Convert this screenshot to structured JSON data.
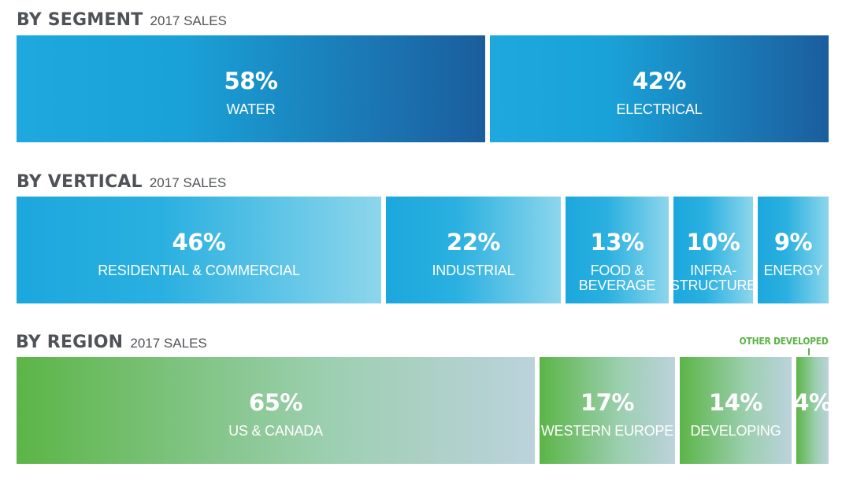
{
  "chart_data": [
    {
      "type": "bar",
      "orientation": "horizontal-stacked",
      "title": "BY SEGMENT",
      "subtitle": "2017 SALES",
      "categories": [
        "WATER",
        "ELECTRICAL"
      ],
      "percent_labels": [
        "58%",
        "42%"
      ],
      "values": [
        58,
        42
      ],
      "unit": "%"
    },
    {
      "type": "bar",
      "orientation": "horizontal-stacked",
      "title": "BY VERTICAL",
      "subtitle": "2017 SALES",
      "categories": [
        "RESIDENTIAL & COMMERCIAL",
        "INDUSTRIAL",
        "FOOD &\nBEVERAGE",
        "INFRA-\nSTRUCTURE",
        "ENERGY"
      ],
      "percent_labels": [
        "46%",
        "22%",
        "13%",
        "10%",
        "9%"
      ],
      "values": [
        46,
        22,
        13,
        10,
        9
      ],
      "unit": "%"
    },
    {
      "type": "bar",
      "orientation": "horizontal-stacked",
      "title": "BY REGION",
      "subtitle": "2017 SALES",
      "categories": [
        "US & CANADA",
        "WESTERN EUROPE",
        "DEVELOPING",
        ""
      ],
      "percent_labels": [
        "65%",
        "17%",
        "14%",
        "4%"
      ],
      "values": [
        65,
        17,
        14,
        4
      ],
      "unit": "%",
      "annotations": [
        {
          "target_index": 3,
          "text": "OTHER DEVELOPED"
        }
      ]
    }
  ],
  "colors": {
    "heading": "#4f5357",
    "segment_start": "#1ea8de",
    "segment_end": "#1b5d9d",
    "vertical_start": "#1ca7dd",
    "vertical_end": "#8dd6ec",
    "region_start": "#5cb547",
    "region_end": "#bcd2dc",
    "label_text": "#ffffff"
  }
}
